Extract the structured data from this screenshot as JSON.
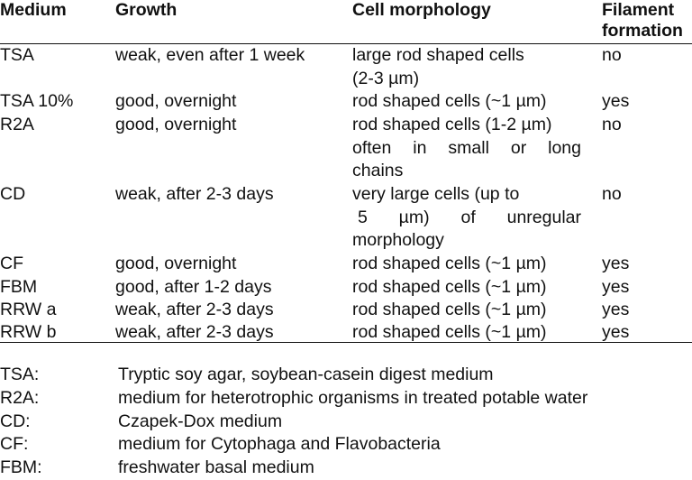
{
  "header": {
    "medium": "Medium",
    "growth": "Growth",
    "morphology": "Cell morphology",
    "filament_line1": "Filament",
    "filament_line2": "formation"
  },
  "rows": [
    {
      "medium": "TSA",
      "growth": "weak, even after 1 week",
      "morphology_lines": [
        "large rod shaped cells",
        "(2-3 µm)"
      ],
      "filament": "no"
    },
    {
      "medium": "TSA 10%",
      "growth": "good, overnight",
      "morphology_lines": [
        "rod shaped cells (~1 µm)"
      ],
      "filament": "yes"
    },
    {
      "medium": "R2A",
      "growth": "good, overnight",
      "morphology_lines": [
        "rod shaped cells (1-2 µm)",
        "often in small or long",
        "chains"
      ],
      "filament": "no"
    },
    {
      "medium": "CD",
      "growth": "weak, after 2-3 days",
      "morphology_lines": [
        "very large cells (up to",
        "5 µm) of unregular",
        "morphology"
      ],
      "filament": "no"
    },
    {
      "medium": "CF",
      "growth": "good, overnight",
      "morphology_lines": [
        "rod shaped cells (~1 µm)"
      ],
      "filament": "yes"
    },
    {
      "medium": "FBM",
      "growth": "good, after 1-2 days",
      "morphology_lines": [
        "rod shaped cells (~1 µm)"
      ],
      "filament": "yes"
    },
    {
      "medium": "RRW a",
      "growth": "weak, after 2-3 days",
      "morphology_lines": [
        "rod shaped cells (~1 µm)"
      ],
      "filament": "yes"
    },
    {
      "medium": "RRW b",
      "growth": "weak, after 2-3 days",
      "morphology_lines": [
        "rod shaped cells (~1 µm)"
      ],
      "filament": "yes"
    }
  ],
  "legend": [
    {
      "abbr": "TSA:",
      "desc": "Tryptic soy agar, soybean-casein digest medium"
    },
    {
      "abbr": "R2A:",
      "desc": "medium for heterotrophic organisms in treated potable water"
    },
    {
      "abbr": "CD:",
      "desc": "Czapek-Dox medium"
    },
    {
      "abbr": "CF:",
      "desc": "medium for Cytophaga and Flavobacteria"
    },
    {
      "abbr": "FBM:",
      "desc": "freshwater basal medium"
    }
  ]
}
